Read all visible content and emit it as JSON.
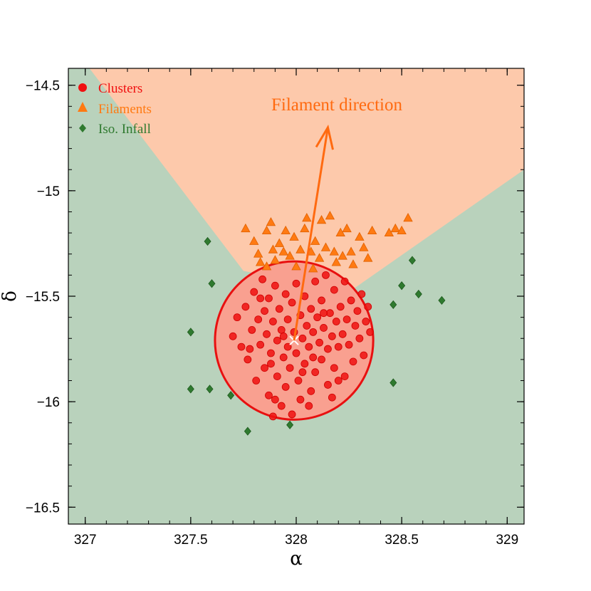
{
  "chart_data": {
    "type": "scatter",
    "xlabel": "α",
    "ylabel": "δ",
    "xlim": [
      326.92,
      329.08
    ],
    "ylim": [
      -16.58,
      -14.42
    ],
    "x_ticks": [
      327,
      327.5,
      328,
      328.5,
      329
    ],
    "x_tick_labels": [
      "327",
      "327.5",
      "328",
      "328.5",
      "329"
    ],
    "y_ticks": [
      -14.5,
      -15,
      -15.5,
      -16,
      -16.5
    ],
    "y_tick_labels": [
      "−14.5",
      "−15",
      "−15.5",
      "−16",
      "−16.5"
    ],
    "colors": {
      "background_region": "#b9d2bc",
      "filament_region": "#fdc9ab",
      "clusters": "#f01010",
      "filaments": "#ff7a12",
      "iso_infall": "#2f7a2f",
      "arrow": "#ff6a10",
      "circle_fill": "#f9a090",
      "circle_stroke": "#e81010"
    },
    "filament_region_polygon": [
      [
        327.02,
        -14.42
      ],
      [
        329.08,
        -14.42
      ],
      [
        329.08,
        -14.9
      ],
      [
        328.25,
        -15.48
      ],
      [
        327.75,
        -15.38
      ]
    ],
    "circle": {
      "center": [
        327.99,
        -15.71
      ],
      "radius": 0.375
    },
    "center_marker": [
      327.99,
      -15.71
    ],
    "arrow": {
      "from": [
        327.99,
        -15.71
      ],
      "to": [
        328.15,
        -14.7
      ],
      "label": "Filament direction"
    },
    "legend": {
      "position": "top-left",
      "entries": [
        {
          "label": "Clusters",
          "marker": "circle",
          "color": "#f01010"
        },
        {
          "label": "Filaments",
          "marker": "triangle",
          "color": "#ff7a12"
        },
        {
          "label": "Iso. Infall",
          "marker": "diamond",
          "color": "#2f7a2f"
        }
      ]
    },
    "series": [
      {
        "name": "Clusters",
        "marker": "circle",
        "points": [
          [
            327.7,
            -15.69
          ],
          [
            327.72,
            -15.6
          ],
          [
            327.74,
            -15.74
          ],
          [
            327.76,
            -15.55
          ],
          [
            327.77,
            -15.8
          ],
          [
            327.79,
            -15.66
          ],
          [
            327.8,
            -15.48
          ],
          [
            327.81,
            -15.9
          ],
          [
            327.82,
            -15.61
          ],
          [
            327.83,
            -15.73
          ],
          [
            327.84,
            -15.42
          ],
          [
            327.85,
            -15.57
          ],
          [
            327.85,
            -15.84
          ],
          [
            327.86,
            -15.68
          ],
          [
            327.87,
            -15.97
          ],
          [
            327.87,
            -15.51
          ],
          [
            327.88,
            -15.77
          ],
          [
            327.89,
            -15.62
          ],
          [
            327.89,
            -16.07
          ],
          [
            327.9,
            -15.45
          ],
          [
            327.91,
            -15.71
          ],
          [
            327.91,
            -15.88
          ],
          [
            327.92,
            -15.56
          ],
          [
            327.93,
            -15.66
          ],
          [
            327.93,
            -16.02
          ],
          [
            327.94,
            -15.79
          ],
          [
            327.95,
            -15.49
          ],
          [
            327.95,
            -15.93
          ],
          [
            327.96,
            -15.61
          ],
          [
            327.96,
            -15.74
          ],
          [
            327.97,
            -15.84
          ],
          [
            327.98,
            -15.53
          ],
          [
            327.98,
            -16.06
          ],
          [
            327.99,
            -15.67
          ],
          [
            328.0,
            -15.44
          ],
          [
            328.0,
            -15.77
          ],
          [
            328.01,
            -15.9
          ],
          [
            328.02,
            -15.59
          ],
          [
            328.02,
            -15.99
          ],
          [
            328.03,
            -15.7
          ],
          [
            328.04,
            -15.5
          ],
          [
            328.04,
            -15.82
          ],
          [
            328.05,
            -15.64
          ],
          [
            328.06,
            -15.74
          ],
          [
            328.07,
            -15.56
          ],
          [
            328.07,
            -15.95
          ],
          [
            328.08,
            -15.67
          ],
          [
            328.09,
            -15.43
          ],
          [
            328.09,
            -15.86
          ],
          [
            328.1,
            -15.6
          ],
          [
            328.11,
            -15.72
          ],
          [
            328.12,
            -15.52
          ],
          [
            328.12,
            -15.8
          ],
          [
            328.13,
            -15.65
          ],
          [
            328.14,
            -15.4
          ],
          [
            328.15,
            -15.75
          ],
          [
            328.15,
            -15.92
          ],
          [
            328.16,
            -15.58
          ],
          [
            328.17,
            -15.69
          ],
          [
            328.18,
            -15.47
          ],
          [
            328.18,
            -15.84
          ],
          [
            328.19,
            -15.62
          ],
          [
            328.2,
            -15.74
          ],
          [
            328.21,
            -15.55
          ],
          [
            328.22,
            -15.68
          ],
          [
            328.23,
            -15.43
          ],
          [
            328.23,
            -15.88
          ],
          [
            328.24,
            -15.61
          ],
          [
            328.25,
            -15.73
          ],
          [
            328.26,
            -15.52
          ],
          [
            328.27,
            -15.81
          ],
          [
            328.28,
            -15.64
          ],
          [
            328.29,
            -15.57
          ],
          [
            328.3,
            -15.7
          ],
          [
            328.31,
            -15.49
          ],
          [
            328.32,
            -15.78
          ],
          [
            328.33,
            -15.62
          ],
          [
            328.34,
            -15.55
          ],
          [
            328.35,
            -15.67
          ],
          [
            327.78,
            -15.75
          ],
          [
            327.88,
            -15.82
          ],
          [
            327.94,
            -15.69
          ],
          [
            328.03,
            -15.86
          ],
          [
            328.08,
            -15.79
          ],
          [
            328.13,
            -15.58
          ],
          [
            328.2,
            -15.9
          ],
          [
            327.83,
            -15.51
          ],
          [
            327.9,
            -15.99
          ],
          [
            328.06,
            -16.02
          ],
          [
            328.17,
            -15.98
          ]
        ]
      },
      {
        "name": "Filaments",
        "marker": "triangle",
        "points": [
          [
            327.76,
            -15.18
          ],
          [
            327.8,
            -15.24
          ],
          [
            327.82,
            -15.3
          ],
          [
            327.83,
            -15.34
          ],
          [
            327.86,
            -15.19
          ],
          [
            327.88,
            -15.15
          ],
          [
            327.89,
            -15.28
          ],
          [
            327.9,
            -15.33
          ],
          [
            327.92,
            -15.25
          ],
          [
            327.94,
            -15.29
          ],
          [
            327.95,
            -15.19
          ],
          [
            327.97,
            -15.31
          ],
          [
            327.99,
            -15.22
          ],
          [
            328.0,
            -15.36
          ],
          [
            328.02,
            -15.28
          ],
          [
            328.04,
            -15.18
          ],
          [
            328.05,
            -15.13
          ],
          [
            328.07,
            -15.29
          ],
          [
            328.09,
            -15.24
          ],
          [
            328.11,
            -15.32
          ],
          [
            328.12,
            -15.14
          ],
          [
            328.14,
            -15.27
          ],
          [
            328.16,
            -15.12
          ],
          [
            328.18,
            -15.29
          ],
          [
            328.19,
            -15.34
          ],
          [
            328.21,
            -15.2
          ],
          [
            328.22,
            -15.31
          ],
          [
            328.24,
            -15.18
          ],
          [
            328.26,
            -15.29
          ],
          [
            328.27,
            -15.35
          ],
          [
            328.3,
            -15.22
          ],
          [
            328.32,
            -15.27
          ],
          [
            328.34,
            -15.32
          ],
          [
            328.36,
            -15.19
          ],
          [
            328.44,
            -15.2
          ],
          [
            328.47,
            -15.18
          ],
          [
            328.5,
            -15.19
          ],
          [
            328.53,
            -15.13
          ],
          [
            327.86,
            -15.36
          ],
          [
            328.08,
            -15.37
          ]
        ]
      },
      {
        "name": "Iso. Infall",
        "marker": "diamond",
        "points": [
          [
            327.58,
            -15.24
          ],
          [
            327.6,
            -15.44
          ],
          [
            327.5,
            -15.67
          ],
          [
            327.5,
            -15.94
          ],
          [
            327.59,
            -15.94
          ],
          [
            327.69,
            -15.97
          ],
          [
            327.77,
            -16.14
          ],
          [
            327.97,
            -16.11
          ],
          [
            328.46,
            -15.54
          ],
          [
            328.5,
            -15.45
          ],
          [
            328.55,
            -15.33
          ],
          [
            328.58,
            -15.49
          ],
          [
            328.69,
            -15.52
          ],
          [
            328.46,
            -15.91
          ]
        ]
      }
    ]
  }
}
